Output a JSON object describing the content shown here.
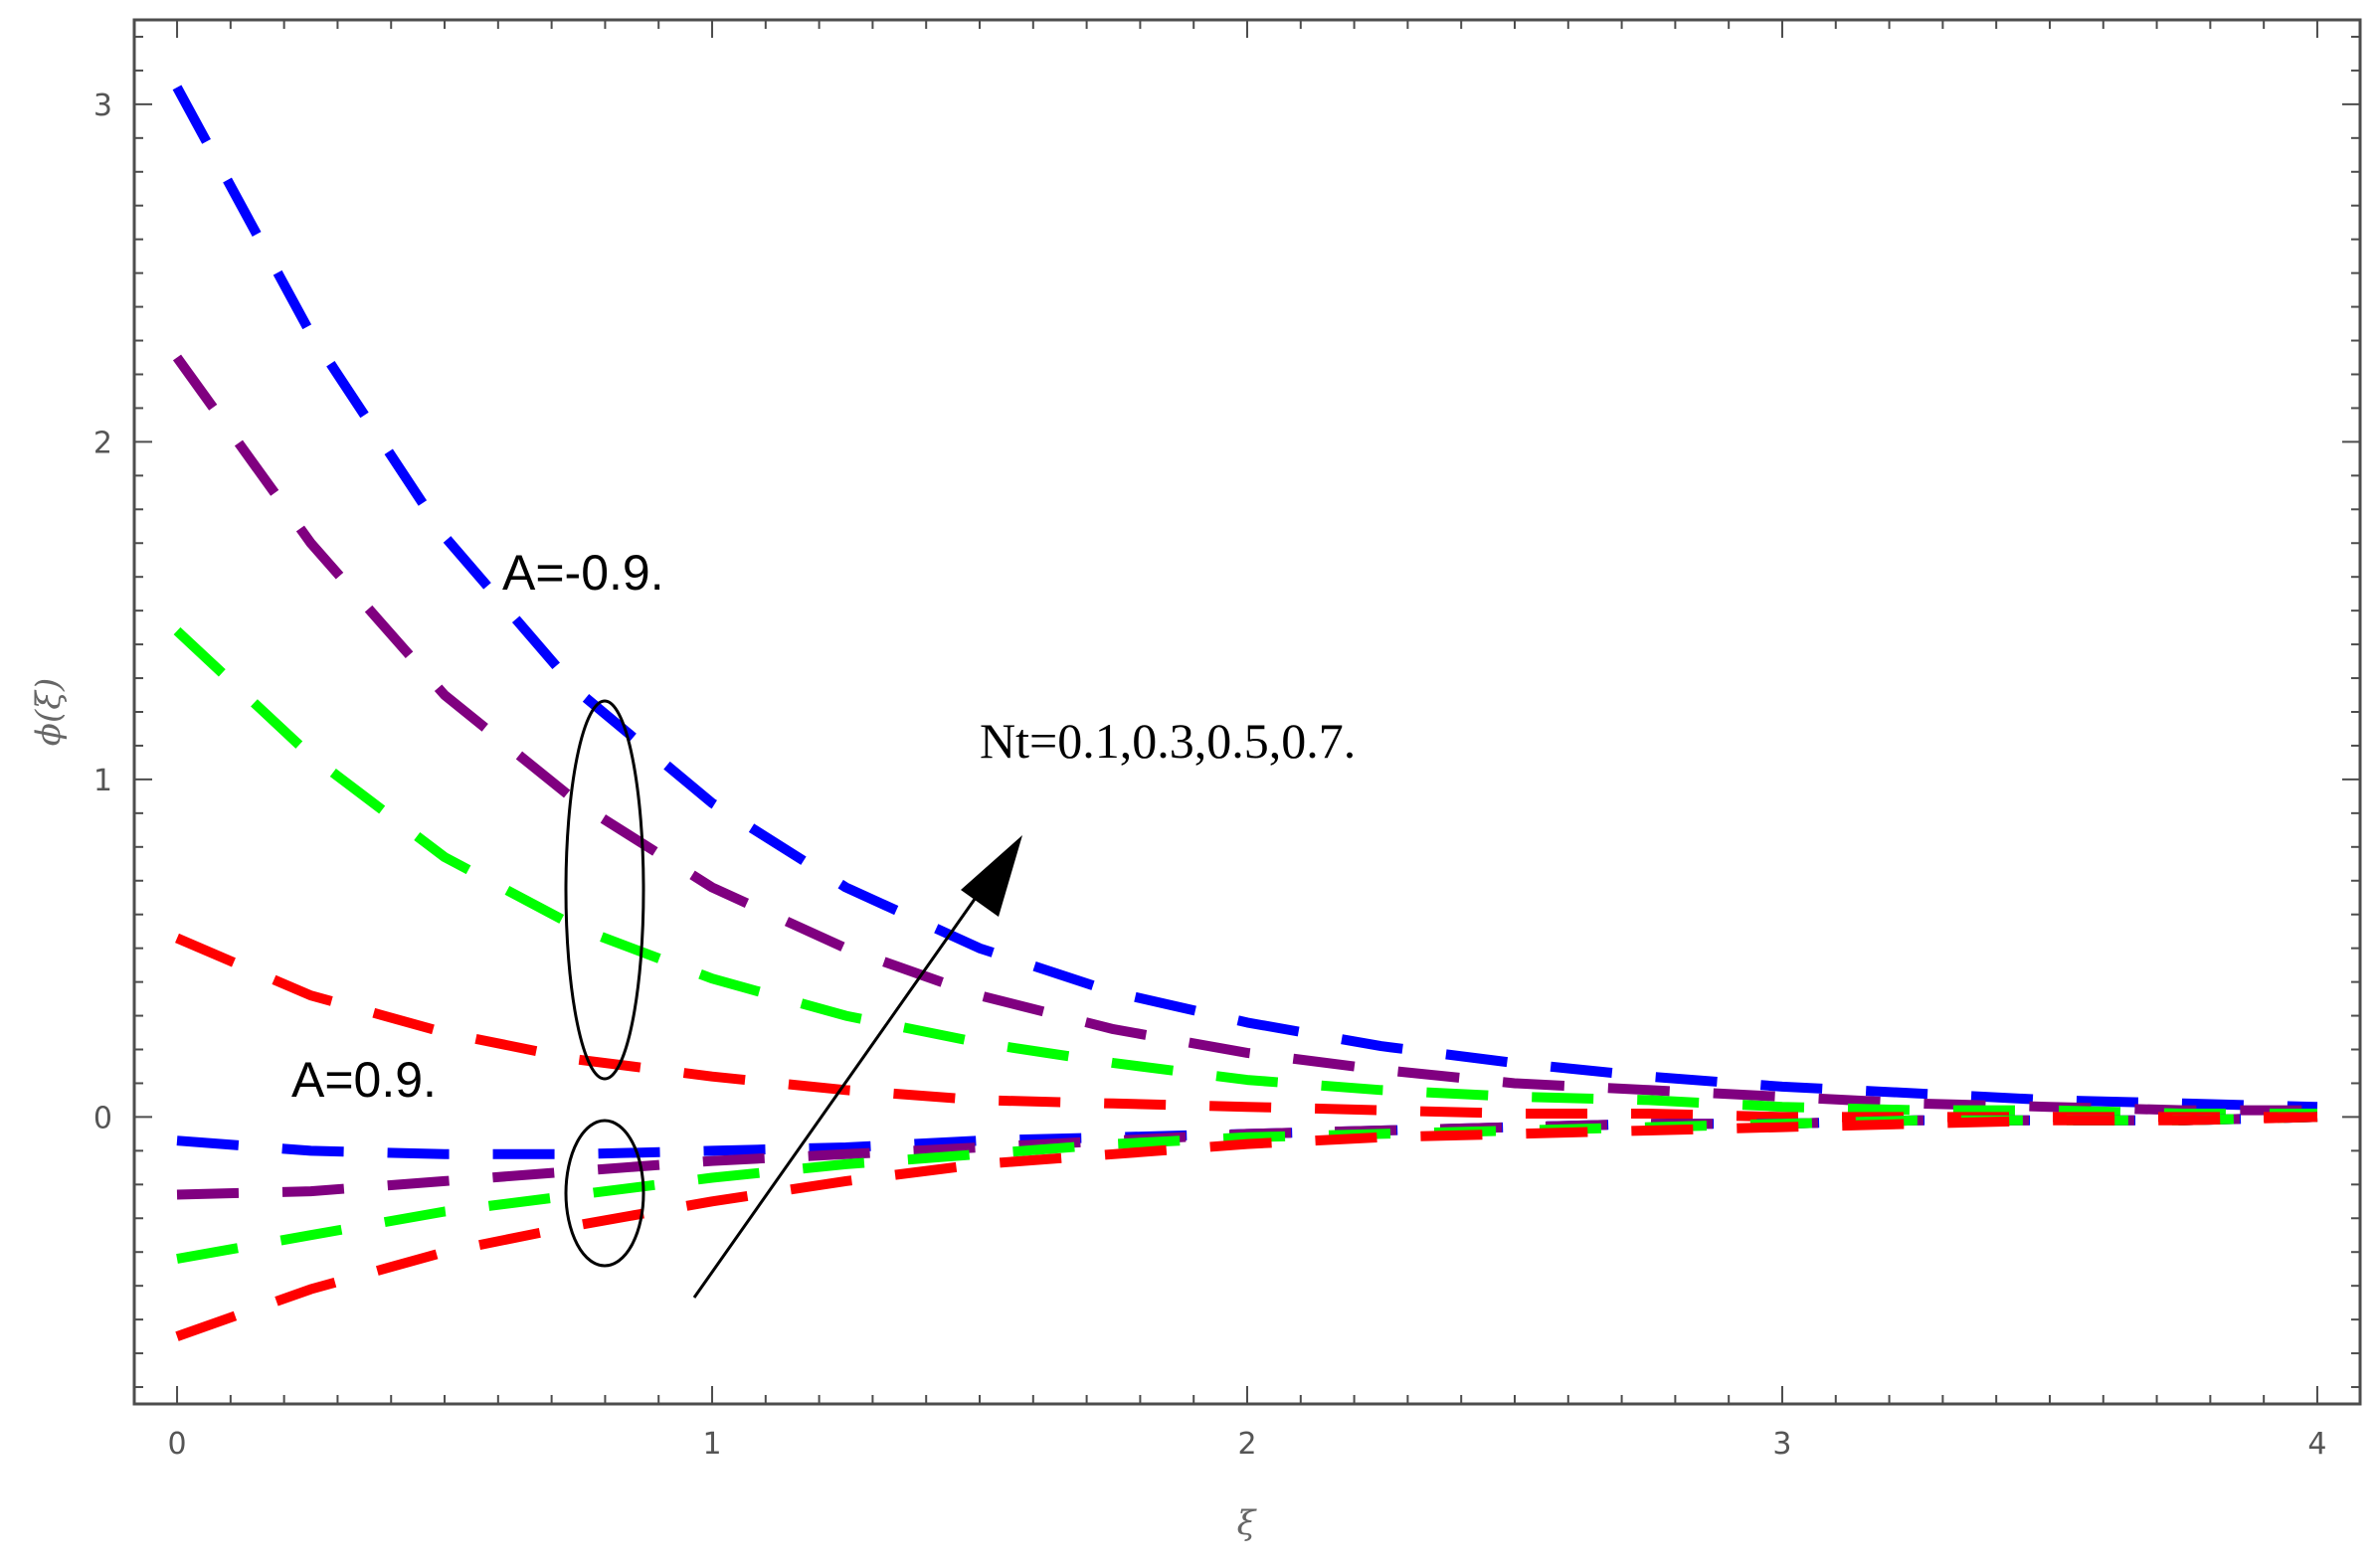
{
  "chart_data": {
    "type": "line",
    "title": "",
    "xlabel": "ξ",
    "ylabel": "ϕ(ξ)",
    "xlim": [
      -0.08,
      4.08
    ],
    "ylim": [
      -0.85,
      3.25
    ],
    "grid": false,
    "x_ticks": [
      "0",
      "1",
      "2",
      "3",
      "4"
    ],
    "y_ticks": [
      "0",
      "1",
      "2",
      "3"
    ],
    "colors": {
      "blue": "#0000ff",
      "purple": "#800080",
      "green": "#00ff00",
      "red": "#ff0000"
    },
    "groups": [
      {
        "label": "A=-0.9.",
        "series": [
          {
            "color": "blue",
            "x": [
              0,
              0.25,
              0.5,
              0.75,
              1.0,
              1.25,
              1.5,
              1.75,
              2.0,
              2.25,
              2.5,
              2.75,
              3.0,
              3.25,
              3.5,
              3.75,
              4.0
            ],
            "y": [
              3.05,
              2.32,
              1.72,
              1.26,
              0.93,
              0.68,
              0.5,
              0.37,
              0.28,
              0.21,
              0.16,
              0.12,
              0.09,
              0.07,
              0.05,
              0.04,
              0.03
            ]
          },
          {
            "color": "purple",
            "x": [
              0,
              0.25,
              0.5,
              0.75,
              1.0,
              1.25,
              1.5,
              1.75,
              2.0,
              2.25,
              2.5,
              2.75,
              3.0,
              3.25,
              3.5,
              3.75,
              4.0
            ],
            "y": [
              2.25,
              1.7,
              1.25,
              0.93,
              0.68,
              0.5,
              0.36,
              0.26,
              0.19,
              0.14,
              0.1,
              0.08,
              0.06,
              0.04,
              0.03,
              0.02,
              0.02
            ]
          },
          {
            "color": "green",
            "x": [
              0,
              0.25,
              0.5,
              0.75,
              1.0,
              1.25,
              1.5,
              1.75,
              2.0,
              2.25,
              2.5,
              2.75,
              3.0,
              3.25,
              3.5,
              3.75,
              4.0
            ],
            "y": [
              1.44,
              1.07,
              0.77,
              0.56,
              0.41,
              0.3,
              0.22,
              0.16,
              0.11,
              0.08,
              0.06,
              0.05,
              0.03,
              0.02,
              0.02,
              0.01,
              0.01
            ]
          },
          {
            "color": "red",
            "x": [
              0,
              0.25,
              0.5,
              0.75,
              1.0,
              1.25,
              1.5,
              1.75,
              2.0,
              2.25,
              2.5,
              2.75,
              3.0,
              3.25,
              3.5,
              3.75,
              4.0
            ],
            "y": [
              0.53,
              0.36,
              0.25,
              0.17,
              0.12,
              0.08,
              0.05,
              0.04,
              0.03,
              0.02,
              0.01,
              0.01,
              0.0,
              0.0,
              0.0,
              0.0,
              0.0
            ]
          }
        ]
      },
      {
        "label": "A=0.9.",
        "series": [
          {
            "color": "blue",
            "x": [
              0,
              0.25,
              0.5,
              0.75,
              1.0,
              1.25,
              1.5,
              1.75,
              2.0,
              2.25,
              2.5,
              2.75,
              3.0,
              3.25,
              3.5,
              3.75,
              4.0
            ],
            "y": [
              -0.07,
              -0.1,
              -0.11,
              -0.11,
              -0.1,
              -0.09,
              -0.07,
              -0.06,
              -0.05,
              -0.04,
              -0.03,
              -0.02,
              -0.02,
              -0.01,
              -0.01,
              -0.01,
              0.0
            ]
          },
          {
            "color": "purple",
            "x": [
              0,
              0.25,
              0.5,
              0.75,
              1.0,
              1.25,
              1.5,
              1.75,
              2.0,
              2.25,
              2.5,
              2.75,
              3.0,
              3.25,
              3.5,
              3.75,
              4.0
            ],
            "y": [
              -0.23,
              -0.22,
              -0.19,
              -0.16,
              -0.13,
              -0.11,
              -0.09,
              -0.07,
              -0.05,
              -0.04,
              -0.03,
              -0.02,
              -0.02,
              -0.01,
              -0.01,
              -0.01,
              0.0
            ]
          },
          {
            "color": "green",
            "x": [
              0,
              0.25,
              0.5,
              0.75,
              1.0,
              1.25,
              1.5,
              1.75,
              2.0,
              2.25,
              2.5,
              2.75,
              3.0,
              3.25,
              3.5,
              3.75,
              4.0
            ],
            "y": [
              -0.42,
              -0.35,
              -0.28,
              -0.23,
              -0.18,
              -0.14,
              -0.11,
              -0.08,
              -0.06,
              -0.05,
              -0.04,
              -0.03,
              -0.02,
              -0.01,
              -0.01,
              -0.01,
              0.0
            ]
          },
          {
            "color": "red",
            "x": [
              0,
              0.25,
              0.5,
              0.75,
              1.0,
              1.25,
              1.5,
              1.75,
              2.0,
              2.25,
              2.5,
              2.75,
              3.0,
              3.25,
              3.5,
              3.75,
              4.0
            ],
            "y": [
              -0.65,
              -0.51,
              -0.4,
              -0.32,
              -0.25,
              -0.19,
              -0.14,
              -0.11,
              -0.08,
              -0.06,
              -0.05,
              -0.04,
              -0.03,
              -0.02,
              -0.01,
              -0.01,
              0.0
            ]
          }
        ]
      }
    ],
    "annotations": {
      "a_neg": "A=-0.9.",
      "a_pos": "A=0.9.",
      "nt": "Nt=0.1,0.3,0.5,0.7."
    }
  }
}
